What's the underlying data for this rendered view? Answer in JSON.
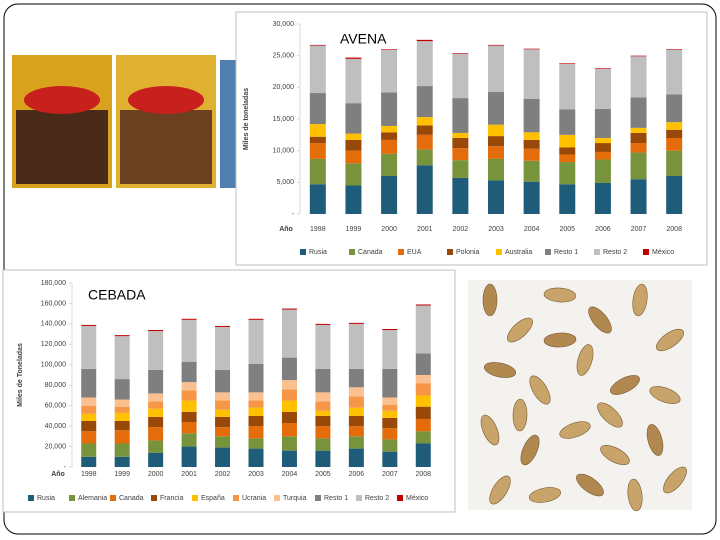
{
  "chart_data": [
    {
      "type": "bar",
      "stacked": true,
      "title": "AVENA",
      "xlabel": "Año",
      "ylabel": "Miles de toneladas",
      "categories": [
        "1998",
        "1999",
        "2000",
        "2001",
        "2002",
        "2003",
        "2004",
        "2005",
        "2006",
        "2007",
        "2008"
      ],
      "ylim": [
        0,
        30000
      ],
      "yticks": [
        {
          "value": 0,
          "label": "-"
        },
        {
          "value": 5000,
          "label": "5,000"
        },
        {
          "value": 10000,
          "label": "10,000"
        },
        {
          "value": 15000,
          "label": "15,000"
        },
        {
          "value": 20000,
          "label": "20,000"
        },
        {
          "value": 25000,
          "label": "25,000"
        },
        {
          "value": 30000,
          "label": "30,000"
        }
      ],
      "grid": false,
      "legend": "bottom",
      "series": [
        {
          "name": "Rusia",
          "color": "#1f5c7a",
          "values": [
            4700,
            4500,
            6000,
            7700,
            5700,
            5300,
            5100,
            4700,
            4900,
            5500,
            6000
          ]
        },
        {
          "name": "Canada",
          "color": "#77933c",
          "values": [
            4000,
            3500,
            3500,
            2500,
            2800,
            3400,
            3300,
            3500,
            3700,
            4200,
            4000
          ]
        },
        {
          "name": "EUA",
          "color": "#e46c0a",
          "values": [
            2500,
            2000,
            2200,
            2300,
            1900,
            2000,
            1900,
            1200,
            1200,
            1500,
            2000
          ]
        },
        {
          "name": "Polonia",
          "color": "#984807",
          "values": [
            1000,
            1700,
            1200,
            1500,
            1600,
            1600,
            1400,
            1100,
            1400,
            1600,
            1300
          ]
        },
        {
          "name": "Australia",
          "color": "#ffc000",
          "values": [
            2000,
            1000,
            1000,
            1300,
            800,
            1800,
            1200,
            2000,
            800,
            800,
            1200
          ]
        },
        {
          "name": "Resto 1",
          "color": "#7f7f7f",
          "values": [
            4900,
            4800,
            5300,
            4900,
            5500,
            5200,
            5300,
            4000,
            4600,
            4800,
            4400
          ]
        },
        {
          "name": "Resto 2",
          "color": "#bfbfbf",
          "values": [
            7500,
            7000,
            6700,
            7100,
            7000,
            7300,
            7800,
            7200,
            6300,
            6500,
            7000
          ]
        },
        {
          "name": "México",
          "color": "#c00000",
          "values": [
            100,
            200,
            100,
            200,
            100,
            100,
            100,
            100,
            100,
            100,
            100
          ]
        }
      ]
    },
    {
      "type": "bar",
      "stacked": true,
      "title": "CEBADA",
      "xlabel": "Año",
      "ylabel": "Miles de Toneladas",
      "categories": [
        "1998",
        "1999",
        "2000",
        "2001",
        "2002",
        "2003",
        "2004",
        "2005",
        "2006",
        "2007",
        "2008"
      ],
      "ylim": [
        0,
        180000
      ],
      "yticks": [
        {
          "value": 0,
          "label": "-"
        },
        {
          "value": 20000,
          "label": "20,000"
        },
        {
          "value": 40000,
          "label": "40,000"
        },
        {
          "value": 60000,
          "label": "60,000"
        },
        {
          "value": 80000,
          "label": "80,000"
        },
        {
          "value": 100000,
          "label": "100,000"
        },
        {
          "value": 120000,
          "label": "120,000"
        },
        {
          "value": 140000,
          "label": "140,000"
        },
        {
          "value": 160000,
          "label": "160,000"
        },
        {
          "value": 180000,
          "label": "180,000"
        }
      ],
      "grid": false,
      "legend": "bottom",
      "series": [
        {
          "name": "Rusia",
          "color": "#1f5c7a",
          "values": [
            10000,
            10000,
            14000,
            20000,
            19000,
            18000,
            16000,
            16000,
            18000,
            15000,
            23000
          ]
        },
        {
          "name": "Alemania",
          "color": "#77933c",
          "values": [
            13000,
            13000,
            12000,
            13000,
            11000,
            10000,
            14000,
            12000,
            12000,
            12000,
            12000
          ]
        },
        {
          "name": "Canada",
          "color": "#e46c0a",
          "values": [
            12000,
            13000,
            13000,
            11000,
            9000,
            12000,
            13000,
            12000,
            10000,
            11000,
            12000
          ]
        },
        {
          "name": "Francia",
          "color": "#984807",
          "values": [
            10000,
            9000,
            10000,
            10000,
            10000,
            10000,
            11000,
            10000,
            10000,
            10000,
            12000
          ]
        },
        {
          "name": "España",
          "color": "#ffc000",
          "values": [
            7000,
            8000,
            8000,
            11000,
            7000,
            8000,
            11000,
            5000,
            8000,
            7000,
            11000
          ]
        },
        {
          "name": "Ucrania",
          "color": "#f79646",
          "values": [
            8000,
            6000,
            7000,
            10000,
            9000,
            7000,
            11000,
            9000,
            11000,
            6000,
            12000
          ]
        },
        {
          "name": "Turquia",
          "color": "#fac090",
          "values": [
            8000,
            7000,
            8000,
            8000,
            8000,
            8000,
            9000,
            9000,
            9000,
            7000,
            8000
          ]
        },
        {
          "name": "Resto 1",
          "color": "#7f7f7f",
          "values": [
            28000,
            20000,
            23000,
            20000,
            22000,
            28000,
            22000,
            23000,
            18000,
            28000,
            21000
          ]
        },
        {
          "name": "Resto 2",
          "color": "#bfbfbf",
          "values": [
            42000,
            42000,
            38000,
            41000,
            42000,
            43000,
            47000,
            43000,
            44000,
            38000,
            47000
          ]
        },
        {
          "name": "México",
          "color": "#c00000",
          "values": [
            1000,
            1000,
            1000,
            1000,
            1000,
            1000,
            1000,
            1000,
            1000,
            1000,
            1000
          ]
        }
      ]
    }
  ]
}
